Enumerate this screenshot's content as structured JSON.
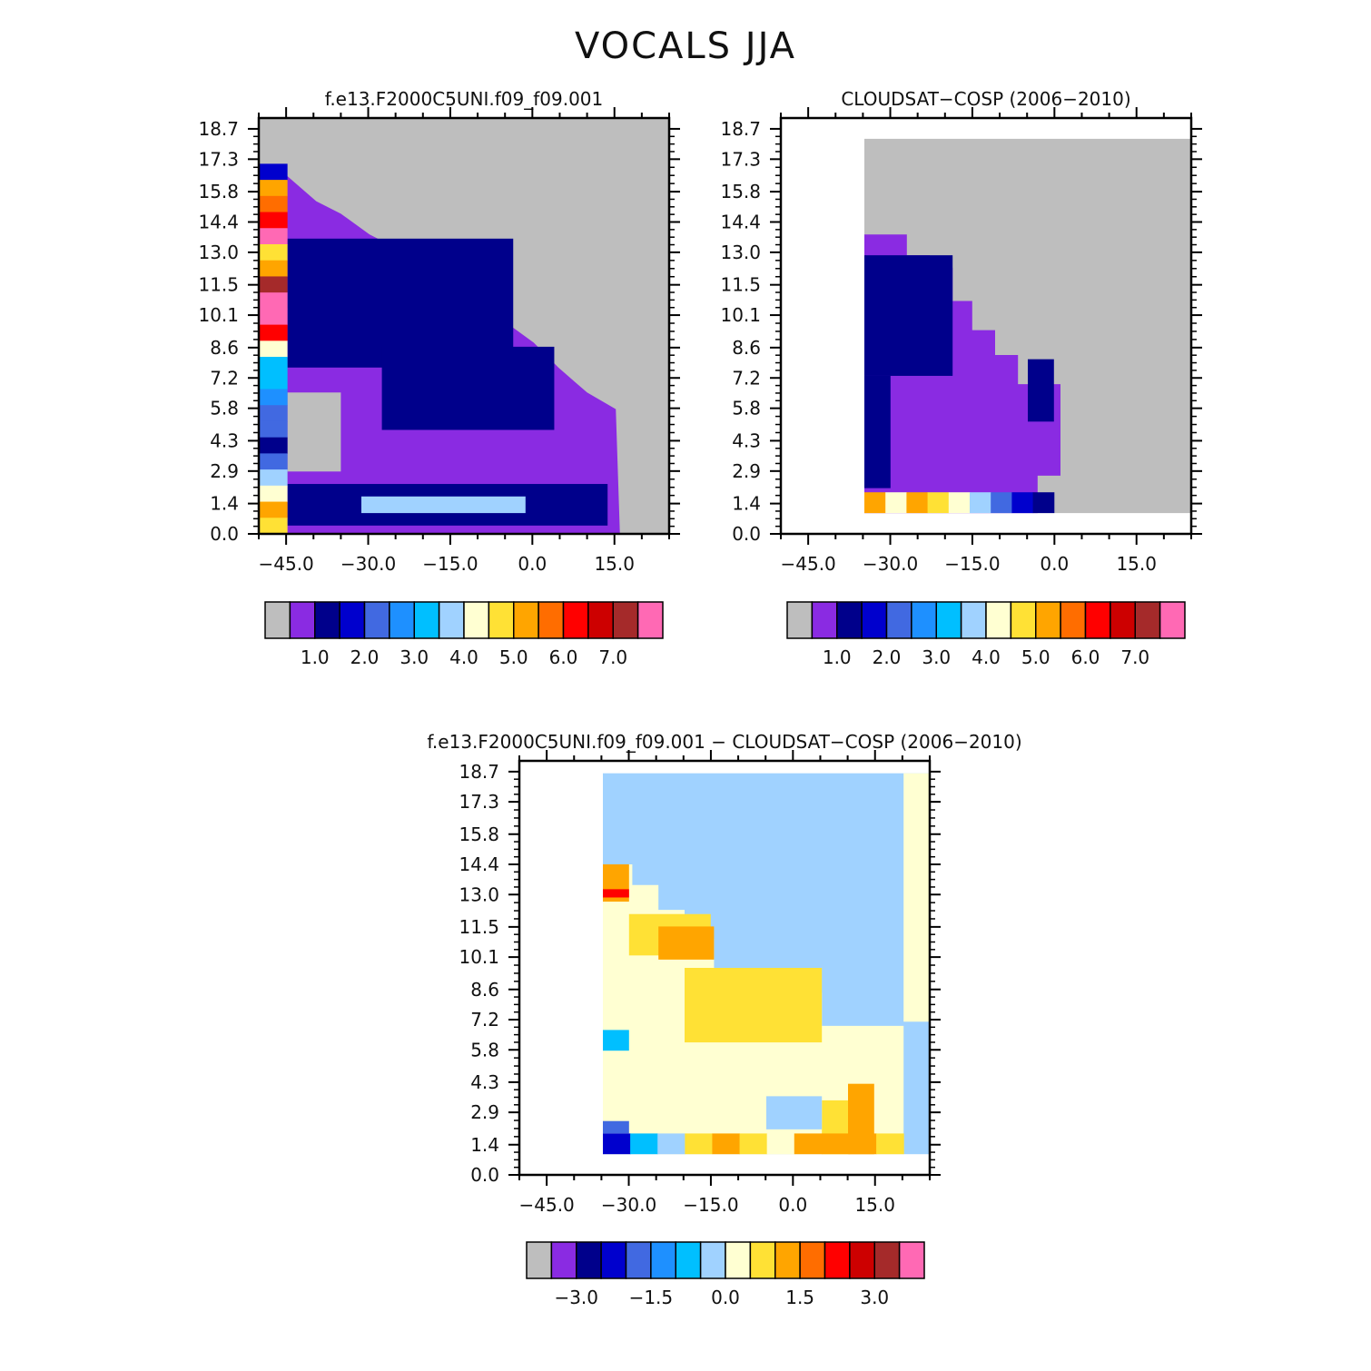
{
  "title": "VOCALS JJA",
  "chart_data": [
    {
      "type": "heatmap",
      "title": "f.e13.F2000C5UNI.f09_f09.001",
      "x_ticks": [
        "-45.0",
        "-30.0",
        "-15.0",
        "0.0",
        "15.0"
      ],
      "y_ticks": [
        "0.0",
        "1.4",
        "2.9",
        "4.3",
        "5.8",
        "7.2",
        "8.6",
        "10.1",
        "11.5",
        "13.0",
        "14.4",
        "15.8",
        "17.3",
        "18.7"
      ],
      "colors": [
        "#bebebe",
        "#8a2be2",
        "#00008b",
        "#0000cd",
        "#4169e1",
        "#1e90ff",
        "#00bfff",
        "#a0d2ff",
        "#ffffd2",
        "#ffe135",
        "#ffa500",
        "#ff6d00",
        "#ff0000",
        "#cd0000",
        "#a52a2a",
        "#ff69b4"
      ],
      "colorbar_labels": [
        "1.0",
        "2.0",
        "3.0",
        "4.0",
        "5.0",
        "6.0",
        "7.0"
      ]
    },
    {
      "type": "heatmap",
      "title": "CLOUDSAT−COSP (2006−2010)",
      "x_ticks": [
        "-45.0",
        "-30.0",
        "-15.0",
        "0.0",
        "15.0"
      ],
      "y_ticks": [
        "0.0",
        "1.4",
        "2.9",
        "4.3",
        "5.8",
        "7.2",
        "8.6",
        "10.1",
        "11.5",
        "13.0",
        "14.4",
        "15.8",
        "17.3",
        "18.7"
      ],
      "colors": [
        "#bebebe",
        "#8a2be2",
        "#00008b",
        "#0000cd",
        "#4169e1",
        "#1e90ff",
        "#00bfff",
        "#a0d2ff",
        "#ffffd2",
        "#ffe135",
        "#ffa500",
        "#ff6d00",
        "#ff0000",
        "#cd0000",
        "#a52a2a",
        "#ff69b4"
      ],
      "colorbar_labels": [
        "1.0",
        "2.0",
        "3.0",
        "4.0",
        "5.0",
        "6.0",
        "7.0"
      ]
    },
    {
      "type": "heatmap",
      "title": "f.e13.F2000C5UNI.f09_f09.001 − CLOUDSAT−COSP (2006−2010)",
      "x_ticks": [
        "-45.0",
        "-30.0",
        "-15.0",
        "0.0",
        "15.0"
      ],
      "y_ticks": [
        "0.0",
        "1.4",
        "2.9",
        "4.3",
        "5.8",
        "7.2",
        "8.6",
        "10.1",
        "11.5",
        "13.0",
        "14.4",
        "15.8",
        "17.3",
        "18.7"
      ],
      "colors": [
        "#bebebe",
        "#8a2be2",
        "#00008b",
        "#0000cd",
        "#4169e1",
        "#1e90ff",
        "#00bfff",
        "#a0d2ff",
        "#ffffd2",
        "#ffe135",
        "#ffa500",
        "#ff6d00",
        "#ff0000",
        "#cd0000",
        "#a52a2a",
        "#ff69b4"
      ],
      "colorbar_labels": [
        "-3.0",
        "-1.5",
        "0.0",
        "1.5",
        "3.0"
      ]
    }
  ]
}
